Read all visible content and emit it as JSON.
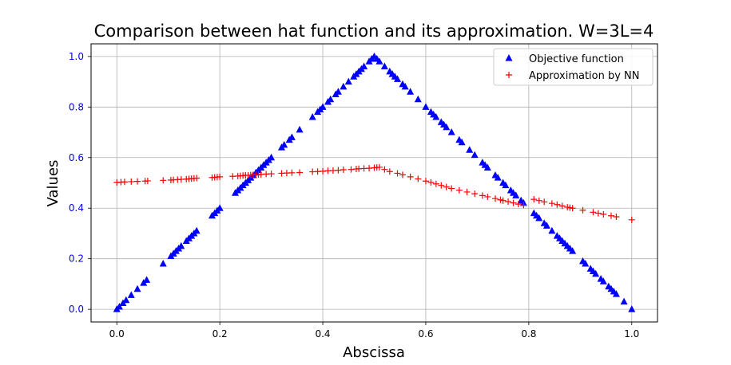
{
  "chart_data": {
    "type": "scatter",
    "title": "Comparison between hat function and its approximation. W=3L=4",
    "xlabel": "Abscissa",
    "ylabel": "Values",
    "xlim": [
      -0.05,
      1.05
    ],
    "ylim": [
      -0.05,
      1.05
    ],
    "grid": true,
    "legend_position": "top-right",
    "x_ticks": [
      0.0,
      0.2,
      0.4,
      0.6,
      0.8,
      1.0
    ],
    "x_tick_labels": [
      "0.0",
      "0.2",
      "0.4",
      "0.6",
      "0.8",
      "1.0"
    ],
    "y_ticks": [
      0.0,
      0.2,
      0.4,
      0.6,
      0.8,
      1.0
    ],
    "y_tick_labels": [
      "0.0",
      "0.2",
      "0.4",
      "0.6",
      "0.8",
      "1.0"
    ],
    "y_tick_color": "#0000ff",
    "series": [
      {
        "name": "Objective function",
        "marker": "triangle",
        "color": "#0000ff",
        "x": [
          0.0,
          0.005,
          0.012,
          0.018,
          0.028,
          0.04,
          0.052,
          0.058,
          0.09,
          0.105,
          0.11,
          0.115,
          0.12,
          0.125,
          0.135,
          0.14,
          0.145,
          0.15,
          0.155,
          0.185,
          0.19,
          0.195,
          0.2,
          0.23,
          0.235,
          0.24,
          0.245,
          0.25,
          0.255,
          0.26,
          0.265,
          0.27,
          0.275,
          0.28,
          0.285,
          0.29,
          0.295,
          0.3,
          0.32,
          0.325,
          0.335,
          0.34,
          0.355,
          0.38,
          0.39,
          0.395,
          0.4,
          0.41,
          0.415,
          0.425,
          0.43,
          0.44,
          0.45,
          0.46,
          0.465,
          0.47,
          0.475,
          0.48,
          0.49,
          0.495,
          0.5,
          0.505,
          0.51,
          0.52,
          0.53,
          0.535,
          0.54,
          0.545,
          0.555,
          0.56,
          0.57,
          0.585,
          0.6,
          0.61,
          0.615,
          0.62,
          0.63,
          0.635,
          0.64,
          0.65,
          0.665,
          0.67,
          0.685,
          0.695,
          0.71,
          0.715,
          0.72,
          0.735,
          0.74,
          0.75,
          0.755,
          0.765,
          0.77,
          0.775,
          0.785,
          0.79,
          0.81,
          0.815,
          0.82,
          0.83,
          0.835,
          0.845,
          0.855,
          0.86,
          0.865,
          0.87,
          0.875,
          0.88,
          0.885,
          0.905,
          0.91,
          0.92,
          0.925,
          0.93,
          0.94,
          0.945,
          0.955,
          0.96,
          0.965,
          0.97,
          0.985,
          1.0
        ],
        "y": [
          0.0,
          0.01,
          0.024,
          0.036,
          0.056,
          0.08,
          0.104,
          0.116,
          0.18,
          0.21,
          0.22,
          0.23,
          0.24,
          0.25,
          0.27,
          0.28,
          0.29,
          0.3,
          0.31,
          0.37,
          0.38,
          0.39,
          0.4,
          0.46,
          0.47,
          0.48,
          0.49,
          0.5,
          0.51,
          0.52,
          0.53,
          0.54,
          0.55,
          0.56,
          0.57,
          0.58,
          0.59,
          0.6,
          0.64,
          0.65,
          0.67,
          0.68,
          0.71,
          0.76,
          0.78,
          0.79,
          0.8,
          0.82,
          0.83,
          0.85,
          0.86,
          0.88,
          0.9,
          0.92,
          0.93,
          0.94,
          0.95,
          0.96,
          0.98,
          0.99,
          1.0,
          0.99,
          0.98,
          0.96,
          0.94,
          0.93,
          0.92,
          0.91,
          0.89,
          0.88,
          0.86,
          0.83,
          0.8,
          0.78,
          0.77,
          0.76,
          0.74,
          0.73,
          0.72,
          0.7,
          0.67,
          0.66,
          0.63,
          0.61,
          0.58,
          0.57,
          0.56,
          0.53,
          0.52,
          0.5,
          0.49,
          0.47,
          0.46,
          0.45,
          0.43,
          0.42,
          0.38,
          0.37,
          0.36,
          0.34,
          0.33,
          0.31,
          0.29,
          0.28,
          0.27,
          0.26,
          0.25,
          0.24,
          0.23,
          0.19,
          0.18,
          0.16,
          0.15,
          0.14,
          0.12,
          0.11,
          0.09,
          0.08,
          0.07,
          0.06,
          0.03,
          0.0
        ]
      },
      {
        "name": "Approximation by NN",
        "marker": "plus",
        "color": "#ff0000",
        "x": [
          0.0,
          0.008,
          0.015,
          0.028,
          0.04,
          0.055,
          0.06,
          0.09,
          0.105,
          0.11,
          0.118,
          0.125,
          0.135,
          0.14,
          0.145,
          0.15,
          0.155,
          0.185,
          0.19,
          0.195,
          0.2,
          0.225,
          0.235,
          0.24,
          0.245,
          0.25,
          0.255,
          0.26,
          0.265,
          0.27,
          0.275,
          0.28,
          0.29,
          0.3,
          0.32,
          0.33,
          0.34,
          0.355,
          0.38,
          0.39,
          0.4,
          0.41,
          0.42,
          0.43,
          0.44,
          0.455,
          0.465,
          0.47,
          0.48,
          0.49,
          0.5,
          0.505,
          0.51,
          0.52,
          0.53,
          0.545,
          0.555,
          0.57,
          0.585,
          0.6,
          0.61,
          0.62,
          0.63,
          0.64,
          0.65,
          0.665,
          0.68,
          0.695,
          0.71,
          0.72,
          0.735,
          0.745,
          0.75,
          0.76,
          0.77,
          0.78,
          0.79,
          0.81,
          0.82,
          0.83,
          0.845,
          0.855,
          0.865,
          0.875,
          0.88,
          0.885,
          0.905,
          0.925,
          0.935,
          0.945,
          0.96,
          0.97,
          1.0
        ],
        "y": [
          0.502,
          0.503,
          0.504,
          0.505,
          0.506,
          0.507,
          0.508,
          0.51,
          0.511,
          0.512,
          0.513,
          0.514,
          0.515,
          0.516,
          0.517,
          0.518,
          0.519,
          0.521,
          0.522,
          0.523,
          0.524,
          0.526,
          0.527,
          0.528,
          0.529,
          0.53,
          0.53,
          0.531,
          0.532,
          0.533,
          0.533,
          0.534,
          0.535,
          0.536,
          0.538,
          0.539,
          0.54,
          0.541,
          0.544,
          0.545,
          0.546,
          0.548,
          0.549,
          0.55,
          0.552,
          0.553,
          0.555,
          0.556,
          0.557,
          0.558,
          0.56,
          0.561,
          0.562,
          0.553,
          0.545,
          0.538,
          0.532,
          0.524,
          0.516,
          0.507,
          0.502,
          0.496,
          0.49,
          0.484,
          0.478,
          0.471,
          0.464,
          0.457,
          0.45,
          0.445,
          0.438,
          0.433,
          0.43,
          0.426,
          0.421,
          0.416,
          0.412,
          0.435,
          0.43,
          0.425,
          0.419,
          0.414,
          0.409,
          0.404,
          0.402,
          0.4,
          0.392,
          0.384,
          0.38,
          0.376,
          0.37,
          0.366,
          0.354
        ]
      }
    ]
  }
}
